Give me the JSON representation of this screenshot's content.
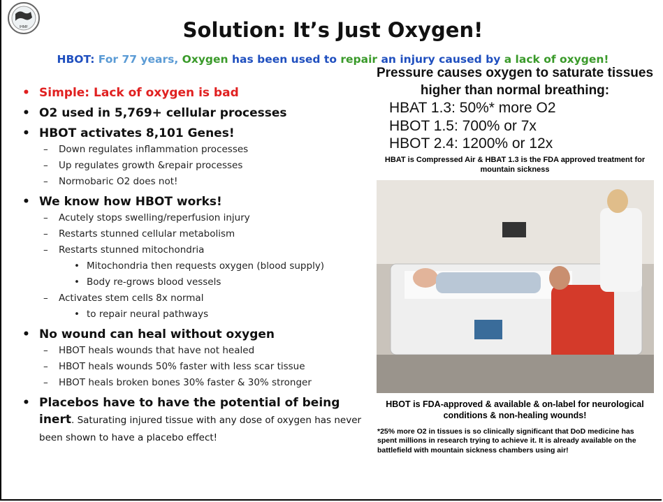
{
  "logo": {
    "label": "IHMF"
  },
  "header": {
    "title": "Solution: It’s Just Oxygen!",
    "subtitle": [
      {
        "text": "HBOT: ",
        "color": "#1f4fbf"
      },
      {
        "text": "For 77 years, ",
        "color": "#5b9bd5"
      },
      {
        "text": "Oxygen ",
        "color": "#3a9a2a"
      },
      {
        "text": "has been ",
        "color": "#1f4fbf"
      },
      {
        "text": "used to ",
        "color": "#1f4fbf"
      },
      {
        "text": "repair ",
        "color": "#3a9a2a"
      },
      {
        "text": "an injury caused by ",
        "color": "#1f4fbf"
      },
      {
        "text": "a lack of oxygen!",
        "color": "#3a9a2a"
      }
    ]
  },
  "left": {
    "bullets": [
      {
        "text": "Simple:  Lack of oxygen is bad",
        "color": "#e02020"
      },
      {
        "text": "O2 used in 5,769+ cellular processes"
      },
      {
        "text": "HBOT activates 8,101 Genes!",
        "children": [
          {
            "text": "Down regulates inflammation processes"
          },
          {
            "text": "Up regulates growth &repair processes"
          },
          {
            "text": "Normobaric O2 does not!"
          }
        ]
      },
      {
        "text": "We know how HBOT works!",
        "children": [
          {
            "text": "Acutely stops swelling/reperfusion injury"
          },
          {
            "text": "Restarts stunned cellular metabolism"
          },
          {
            "text": "Restarts stunned mitochondria",
            "children": [
              {
                "text": "Mitochondria then requests oxygen (blood supply)"
              },
              {
                "text": "Body re-grows blood vessels"
              }
            ]
          },
          {
            "text": "Activates stem cells 8x normal",
            "children": [
              {
                "text": "to repair neural pathways"
              }
            ]
          }
        ]
      },
      {
        "text": "No wound can heal without oxygen",
        "children": [
          {
            "text": "HBOT heals wounds that have not healed"
          },
          {
            "text": "HBOT heals wounds 50% faster with less scar tissue"
          },
          {
            "text": "HBOT heals broken bones 30% faster & 30% stronger"
          }
        ]
      },
      {
        "text": "Placebos have to have the potential of being inert",
        "tail": ". Saturating injured tissue with any dose of oxygen has never been shown to have a placebo effect!"
      }
    ]
  },
  "right": {
    "heading": "Pressure causes oxygen to saturate tissues higher than normal breathing:",
    "levels": [
      "HBAT 1.3:  50%* more O2",
      "HBOT 1.5:  700% or 7x",
      "HBOT 2.4:  1200% or 12x"
    ],
    "note": "HBAT is Compressed Air & HBAT 1.3 is the FDA approved  treatment for mountain sickness",
    "caption": "HBOT is FDA-approved & available & on-label for neurological conditions & non-healing wounds!",
    "footnote": "*25% more O2 in tissues is so clinically significant that DoD medicine has spent millions in research trying to achieve it.  It is already available on the battlefield with mountain sickness chambers using air!"
  }
}
